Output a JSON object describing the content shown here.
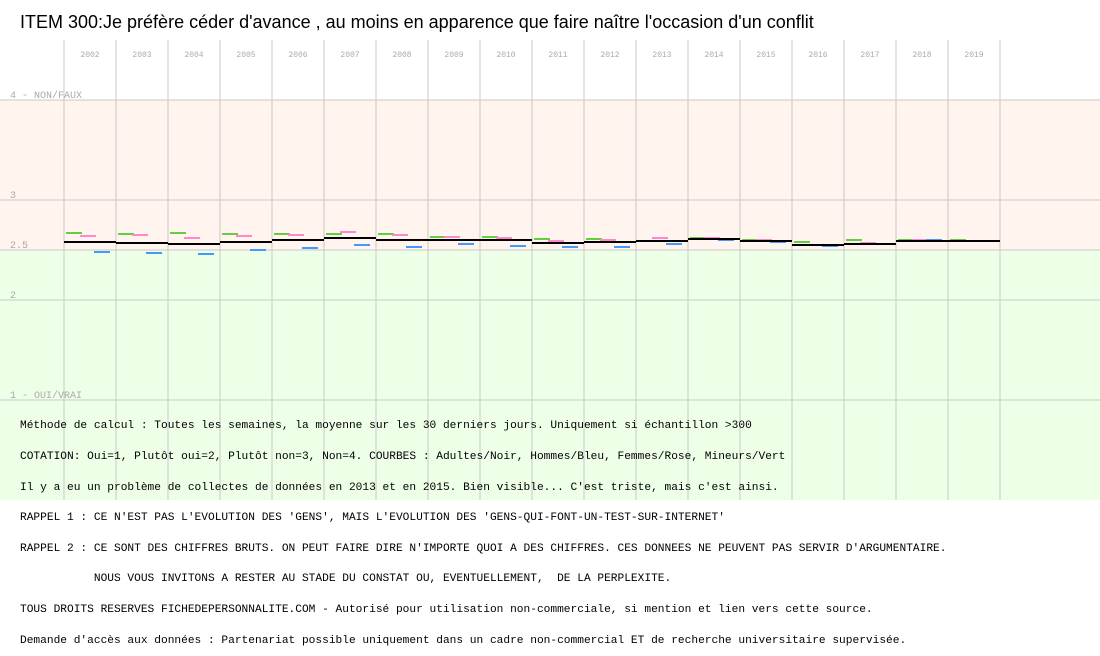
{
  "title": "ITEM 300:Je préfère céder d'avance , au moins en apparence que faire naître l'occasion d'un conflit",
  "colors": {
    "band_top": "#fff4ee",
    "band_bottom": "#eeffe8",
    "grid": "#c8c8c8",
    "axis_text": "#aaaaaa",
    "adultes": "#000000",
    "hommes": "#4499ff",
    "femmes": "#ff88cc",
    "mineurs": "#66cc44"
  },
  "chart_data": {
    "type": "line",
    "x": [
      "2002",
      "2003",
      "2004",
      "2005",
      "2006",
      "2007",
      "2008",
      "2009",
      "2010",
      "2011",
      "2012",
      "2013",
      "2014",
      "2015",
      "2016",
      "2017",
      "2018",
      "2019"
    ],
    "ylim": [
      1,
      4
    ],
    "y_ticks": [
      {
        "value": 4,
        "label": "4 - NON/FAUX"
      },
      {
        "value": 3,
        "label": "3"
      },
      {
        "value": 2.5,
        "label": "2.5"
      },
      {
        "value": 2,
        "label": "2"
      },
      {
        "value": 1,
        "label": "1 - OUI/VRAI"
      }
    ],
    "band_split": 2.5,
    "grid": true,
    "series": [
      {
        "name": "Adultes",
        "color": "#000000",
        "values": [
          2.58,
          2.57,
          2.56,
          2.58,
          2.6,
          2.62,
          2.6,
          2.6,
          2.6,
          2.57,
          2.58,
          2.59,
          2.61,
          2.59,
          2.55,
          2.56,
          2.59,
          2.59
        ]
      },
      {
        "name": "Hommes",
        "color": "#4499ff",
        "values": [
          2.48,
          2.47,
          2.46,
          2.5,
          2.52,
          2.55,
          2.53,
          2.56,
          2.54,
          2.53,
          2.53,
          2.56,
          2.6,
          2.58,
          2.54,
          2.56,
          2.6,
          2.59
        ]
      },
      {
        "name": "Femmes",
        "color": "#ff88cc",
        "values": [
          2.64,
          2.65,
          2.62,
          2.64,
          2.65,
          2.68,
          2.65,
          2.63,
          2.62,
          2.59,
          2.6,
          2.62,
          2.62,
          2.6,
          2.55,
          2.57,
          2.6,
          2.59
        ]
      },
      {
        "name": "Mineurs",
        "color": "#66cc44",
        "values": [
          2.67,
          2.66,
          2.67,
          2.66,
          2.66,
          2.66,
          2.66,
          2.63,
          2.63,
          2.61,
          2.61,
          2.59,
          2.62,
          2.6,
          2.58,
          2.6,
          2.6,
          2.6
        ]
      }
    ]
  },
  "notes": [
    "Méthode de calcul : Toutes les semaines, la moyenne sur les 30 derniers jours. Uniquement si échantillon >300",
    "COTATION: Oui=1, Plutôt oui=2, Plutôt non=3, Non=4. COURBES : Adultes/Noir, Hommes/Bleu, Femmes/Rose, Mineurs/Vert",
    "Il y a eu un problème de collectes de données en 2013 et en 2015. Bien visible... C'est triste, mais c'est ainsi.",
    "RAPPEL 1 : CE N'EST PAS L'EVOLUTION DES 'GENS', MAIS L'EVOLUTION DES 'GENS-QUI-FONT-UN-TEST-SUR-INTERNET'",
    "RAPPEL 2 : CE SONT DES CHIFFRES BRUTS. ON PEUT FAIRE DIRE N'IMPORTE QUOI A DES CHIFFRES. CES DONNEES NE PEUVENT PAS SERVIR D'ARGUMENTAIRE.",
    "           NOUS VOUS INVITONS A RESTER AU STADE DU CONSTAT OU, EVENTUELLEMENT,  DE LA PERPLEXITE.",
    "TOUS DROITS RESERVES FICHEDEPERSONNALITE.COM - Autorisé pour utilisation non-commerciale, si mention et lien vers cette source.",
    "Demande d'accès aux données : Partenariat possible uniquement dans un cadre non-commercial ET de recherche universitaire supervisée."
  ]
}
